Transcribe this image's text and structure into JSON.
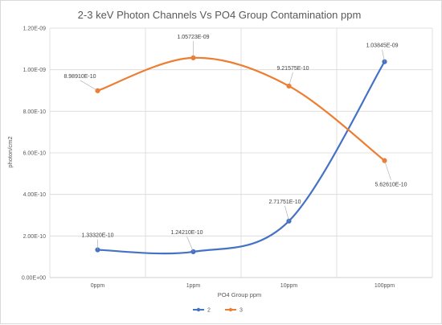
{
  "chart_data": {
    "type": "line",
    "title": "2-3 keV Photon Channels Vs PO4 Group Contamination ppm",
    "xlabel": "PO4 Group ppm",
    "ylabel": "photon/cm2",
    "categories": [
      "0ppm",
      "1ppm",
      "10ppm",
      "100ppm"
    ],
    "ylim": [
      0,
      1.2e-09
    ],
    "yticks": [
      "0.00E+00",
      "2.00E-10",
      "4.00E-10",
      "6.00E-10",
      "8.00E-10",
      "1.00E-09",
      "1.20E-09"
    ],
    "grid": true,
    "smooth": true,
    "legend_position": "bottom",
    "series": [
      {
        "name": "2",
        "color": "#4472c4",
        "values": [
          1.3332e-10,
          1.2421e-10,
          2.71751e-10,
          1.03845e-09
        ],
        "labels": [
          "1.33320E-10",
          "1.24210E-10",
          "2.71751E-10",
          "1.03845E-09"
        ]
      },
      {
        "name": "3",
        "color": "#ed7d31",
        "values": [
          8.9891e-10,
          1.05723e-09,
          9.21575e-10,
          5.6261e-10
        ],
        "labels": [
          "8.98910E-10",
          "1.05723E-09",
          "9.21575E-10",
          "5.62610E-10"
        ]
      }
    ]
  }
}
